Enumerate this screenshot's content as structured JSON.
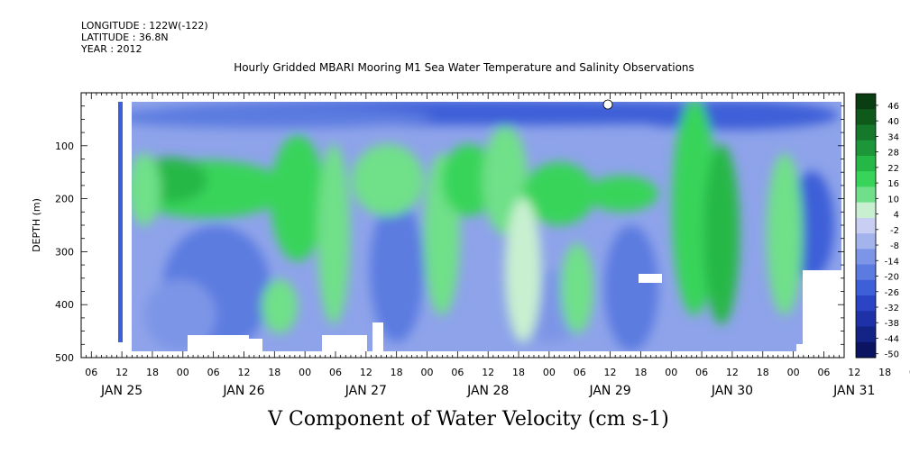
{
  "header": {
    "longitude": "LONGITUDE : 122W(-122)",
    "latitude": "LATITUDE : 36.8N",
    "year": "YEAR : 2012"
  },
  "chart_data": {
    "type": "heatmap",
    "title": "Hourly Gridded MBARI Mooring M1 Sea Water Temperature and Salinity Observations",
    "xlabel": "V Component of Water Velocity (cm s-1)",
    "ylabel": "DEPTH (m)",
    "y_range": [
      0,
      500
    ],
    "y_axis_inverted": true,
    "y_ticks": [
      100,
      200,
      300,
      400,
      500
    ],
    "x_range_hours": [
      4,
      154
    ],
    "x_tick_labels": [
      "06",
      "12",
      "18",
      "00",
      "06",
      "12",
      "18",
      "00",
      "06",
      "12",
      "18",
      "00",
      "06",
      "12",
      "18",
      "00",
      "06",
      "12",
      "18",
      "00",
      "06",
      "12",
      "18",
      "00",
      "06",
      "12",
      "18",
      "00",
      "06",
      "12"
    ],
    "day_labels": [
      "JAN 25",
      "JAN 26",
      "JAN 27",
      "JAN 28",
      "JAN 29",
      "JAN 30",
      "JAN 31"
    ],
    "colorbar": {
      "levels": [
        46,
        40,
        34,
        28,
        22,
        16,
        10,
        4,
        -2,
        -8,
        -14,
        -20,
        -26,
        -32,
        -38,
        -44,
        -50
      ],
      "colors": [
        "#0b3d12",
        "#0f5a1a",
        "#15782a",
        "#1c9638",
        "#26b846",
        "#38d45a",
        "#6fe089",
        "#c8f0d0",
        "#c9cff2",
        "#a3b3ec",
        "#7d95e6",
        "#5c7be0",
        "#3d5fd8",
        "#2a44c4",
        "#1e31a6",
        "#142386",
        "#0b1460"
      ]
    },
    "description": "V component of water velocity, depth 15-490 m, Jan 25 12:00 to Jan 31 12:00; positive northward velocity shown green, negative shown blue"
  }
}
